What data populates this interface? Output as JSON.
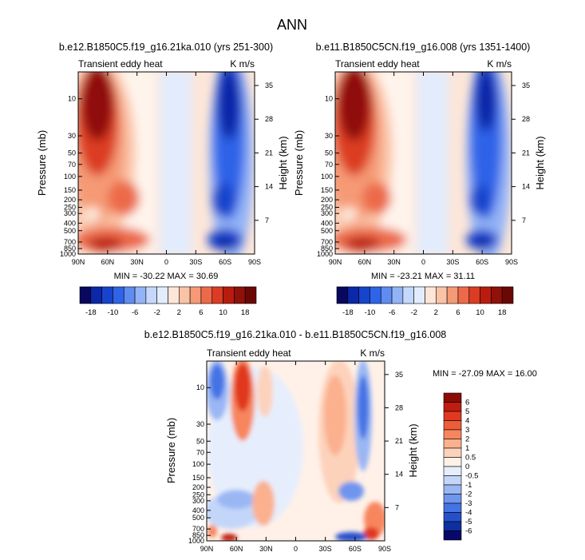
{
  "figure": {
    "title": "ANN"
  },
  "chart_data": [
    {
      "type": "heatmap",
      "subtitle": "b.e12.B1850C5.f19_g16.21ka.010 (yrs 251-300)",
      "field_label": "Transient eddy heat",
      "units": "K m/s",
      "ylabel": "Pressure (mb)",
      "y2label": "Height (km)",
      "x_ticks": [
        "90N",
        "60N",
        "30N",
        "0",
        "30S",
        "60S",
        "90S"
      ],
      "y_ticks": [
        "10",
        "30",
        "50",
        "70",
        "100",
        "150",
        "200",
        "250",
        "300",
        "400",
        "500",
        "700",
        "850",
        "1000"
      ],
      "y2_ticks": [
        "35",
        "28",
        "21",
        "14",
        "7"
      ],
      "stats": "MIN = -30.22  MAX = 30.69"
    },
    {
      "type": "heatmap",
      "subtitle": "b.e11.B1850C5CN.f19_g16.008 (yrs 1351-1400)",
      "field_label": "Transient eddy heat",
      "units": "K m/s",
      "ylabel": "Pressure (mb)",
      "y2label": "Height (km)",
      "x_ticks": [
        "90N",
        "60N",
        "30N",
        "0",
        "30S",
        "60S",
        "90S"
      ],
      "y_ticks": [
        "10",
        "30",
        "50",
        "70",
        "100",
        "150",
        "200",
        "250",
        "300",
        "400",
        "500",
        "700",
        "850",
        "1000"
      ],
      "y2_ticks": [
        "35",
        "28",
        "21",
        "14",
        "7"
      ],
      "stats": "MIN = -23.21  MAX = 31.11"
    },
    {
      "type": "heatmap",
      "subtitle": "b.e12.B1850C5.f19_g16.21ka.010 - b.e11.B1850C5CN.f19_g16.008",
      "field_label": "Transient eddy heat",
      "units": "K m/s",
      "ylabel": "Pressure (mb)",
      "y2label": "Height (km)",
      "x_ticks": [
        "90N",
        "60N",
        "30N",
        "0",
        "30S",
        "60S",
        "90S"
      ],
      "y_ticks": [
        "10",
        "30",
        "50",
        "70",
        "100",
        "150",
        "200",
        "250",
        "300",
        "400",
        "500",
        "700",
        "850",
        "1000"
      ],
      "y2_ticks": [
        "35",
        "28",
        "21",
        "14",
        "7"
      ],
      "stats": "MIN = -27.09  MAX = 16.00"
    }
  ],
  "colorbar_top": {
    "labels": [
      "-18",
      "-10",
      "-6",
      "-2",
      "2",
      "6",
      "10",
      "18"
    ],
    "colors": [
      "#08085e",
      "#0b28a8",
      "#1744cc",
      "#2f64e8",
      "#5f8cf0",
      "#93b3f7",
      "#c5d8fb",
      "#e2ecfd",
      "#fde6d8",
      "#fac3a6",
      "#f59a75",
      "#ec6a4a",
      "#dc3c23",
      "#b81c0f",
      "#90100a",
      "#6a0805"
    ]
  },
  "colorbar_diff": {
    "labels": [
      "6",
      "5",
      "4",
      "3",
      "2",
      "1",
      "0.5",
      "0",
      "-0.5",
      "-1",
      "-2",
      "-3",
      "-4",
      "-5",
      "-6"
    ],
    "colors": [
      "#8c0b07",
      "#c01d10",
      "#e0391f",
      "#ee5c3a",
      "#f7865e",
      "#fbb08e",
      "#fdd2bb",
      "#fff1e8",
      "#e6eefd",
      "#c3d6fa",
      "#9ab7f4",
      "#6f95ee",
      "#4473e4",
      "#2550cc",
      "#0e2f9e",
      "#08086a"
    ]
  }
}
